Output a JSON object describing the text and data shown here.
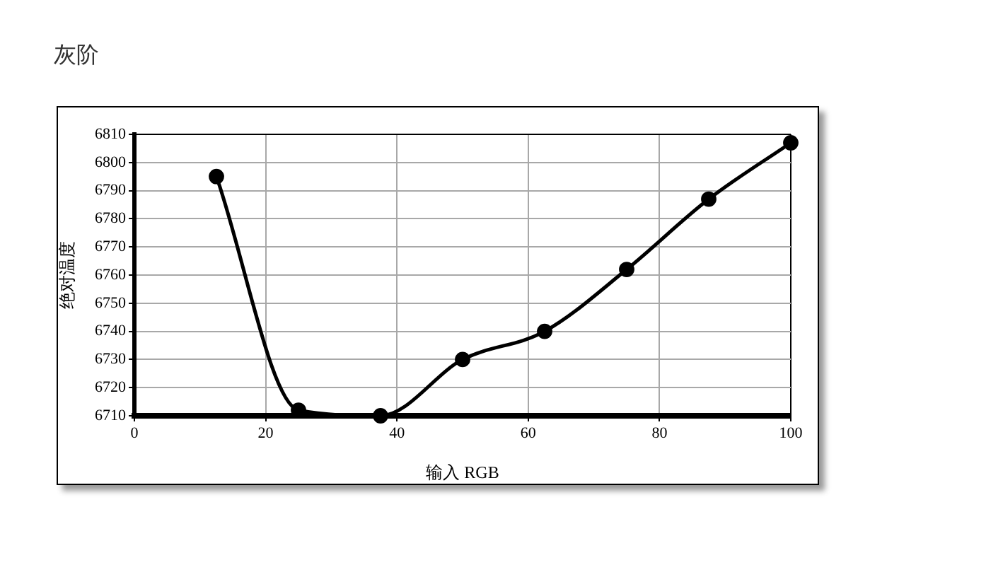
{
  "chart_data": {
    "type": "line",
    "title": "灰阶",
    "xlabel": "输入 RGB",
    "ylabel": "绝对温度",
    "x": [
      12.5,
      25,
      37.5,
      50,
      62.5,
      75,
      87.5,
      100
    ],
    "series": [
      {
        "color": "#000000",
        "values": [
          6795,
          6712,
          6710,
          6730,
          6740,
          6762,
          6787,
          6807
        ]
      }
    ],
    "xlim": [
      0,
      100
    ],
    "xticks": [
      0,
      20,
      40,
      60,
      80,
      100
    ],
    "ylim": [
      6710,
      6810
    ],
    "yticks": [
      6710,
      6720,
      6730,
      6740,
      6750,
      6760,
      6770,
      6780,
      6790,
      6800,
      6810
    ],
    "grid": true,
    "legend": false,
    "marker": "circle",
    "line_style": "solid"
  }
}
